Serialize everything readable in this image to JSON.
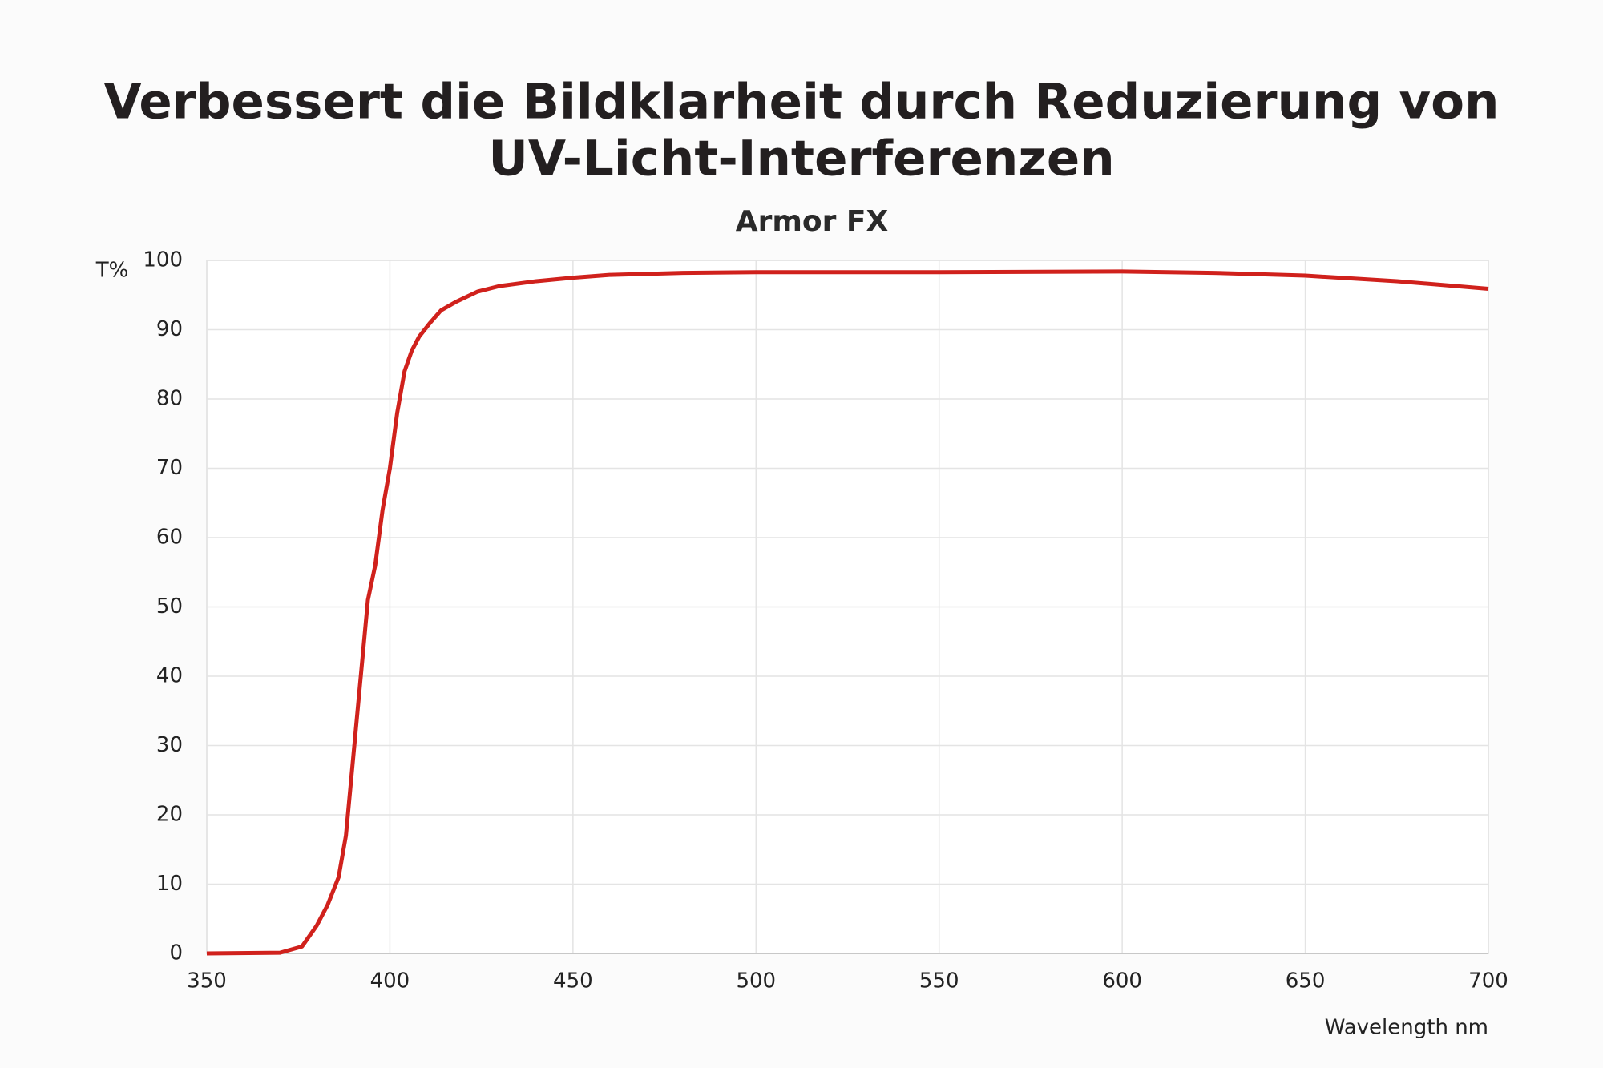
{
  "chart_data": {
    "type": "line",
    "title": "Verbessert die Bildklarheit durch Reduzierung von UV-Licht-Interferenzen",
    "subtitle": "Armor FX",
    "y_label": "T%",
    "x_label": "Wavelength nm",
    "x": [
      350,
      370,
      376,
      380,
      383,
      386,
      388,
      391,
      394,
      396,
      398,
      400,
      402,
      404,
      406,
      408,
      411,
      414,
      418,
      424,
      430,
      440,
      450,
      460,
      480,
      500,
      550,
      600,
      625,
      650,
      675,
      700
    ],
    "series": [
      {
        "name": "Armor FX",
        "color": "#d0211c",
        "values": [
          0,
          0.1,
          1,
          4,
          7,
          11,
          17,
          34,
          51,
          56,
          64,
          70,
          78,
          84,
          87,
          89,
          91,
          92.8,
          94,
          95.5,
          96.3,
          97,
          97.5,
          97.9,
          98.2,
          98.3,
          98.3,
          98.4,
          98.2,
          97.8,
          97,
          95.9
        ]
      }
    ],
    "xlim": [
      350,
      700
    ],
    "xticks": [
      350,
      400,
      450,
      500,
      550,
      600,
      650,
      700
    ],
    "ylim": [
      0,
      100
    ],
    "yticks": [
      0,
      10,
      20,
      30,
      40,
      50,
      60,
      70,
      80,
      90,
      100
    ],
    "grid": true
  }
}
